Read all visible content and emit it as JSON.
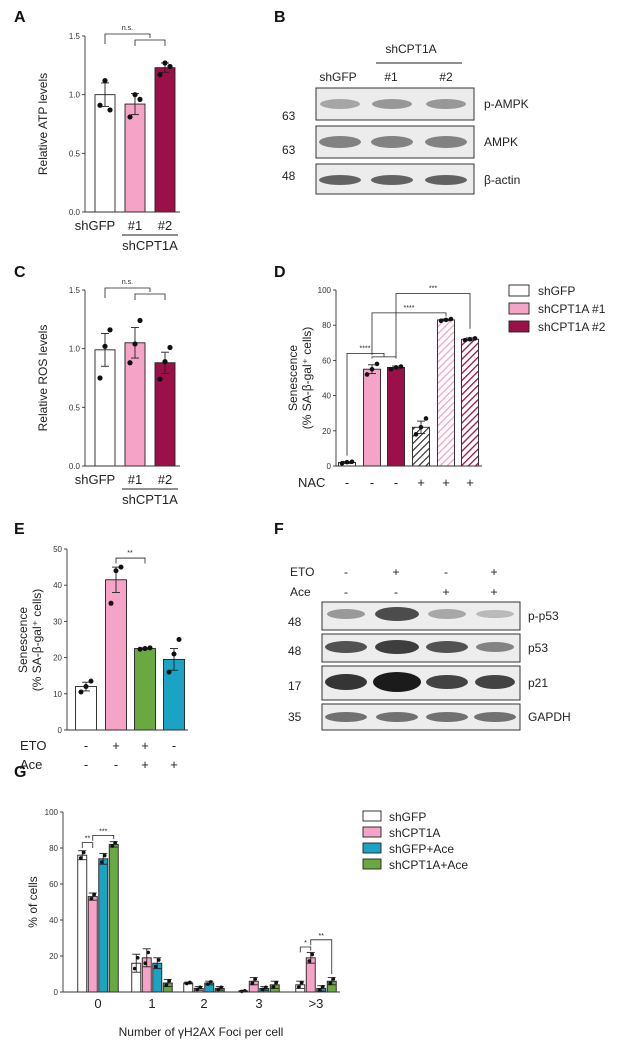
{
  "colors": {
    "white": "#ffffff",
    "pink": "#f5a3c7",
    "maroon": "#9b1048",
    "green": "#6aa842",
    "blue": "#1ba3c3"
  },
  "panels": {
    "A": {
      "letter": "A"
    },
    "B": {
      "letter": "B"
    },
    "C": {
      "letter": "C"
    },
    "D": {
      "letter": "D"
    },
    "E": {
      "letter": "E"
    },
    "F": {
      "letter": "F"
    },
    "G": {
      "letter": "G"
    }
  },
  "chart_data": [
    {
      "id": "A",
      "type": "bar",
      "ylabel": "Relative ATP levels",
      "ylim": [
        0,
        1.5
      ],
      "yticks": [
        "0.0",
        "0.5",
        "1.0",
        "1.5"
      ],
      "categories": [
        "shGFP",
        "#1",
        "#2"
      ],
      "group_label": "shCPT1A",
      "values": [
        1.0,
        0.92,
        1.23
      ],
      "errors": [
        0.1,
        0.09,
        0.04
      ],
      "points": [
        [
          0.91,
          1.12,
          0.87
        ],
        [
          0.81,
          1.0,
          0.96
        ],
        [
          1.17,
          1.27,
          1.24
        ]
      ],
      "colors": [
        "#ffffff",
        "#f5a3c7",
        "#9b1048"
      ],
      "significance": [
        {
          "text": "n.s."
        }
      ]
    },
    {
      "id": "C",
      "type": "bar",
      "ylabel": "Relative ROS levels",
      "ylim": [
        0,
        1.5
      ],
      "yticks": [
        "0.0",
        "0.5",
        "1.0",
        "1.5"
      ],
      "categories": [
        "shGFP",
        "#1",
        "#2"
      ],
      "group_label": "shCPT1A",
      "values": [
        0.99,
        1.05,
        0.88
      ],
      "errors": [
        0.14,
        0.13,
        0.09
      ],
      "points": [
        [
          0.75,
          1.02,
          1.16
        ],
        [
          0.88,
          1.04,
          1.24
        ],
        [
          0.74,
          0.89,
          1.01
        ]
      ],
      "colors": [
        "#ffffff",
        "#f5a3c7",
        "#9b1048"
      ],
      "significance": [
        {
          "text": "n.s."
        }
      ]
    },
    {
      "id": "D",
      "type": "bar",
      "ylabel": "Senescence (% SA-β-gal⁺ cells)",
      "ylim": [
        0,
        100
      ],
      "yticks": [
        "0",
        "20",
        "40",
        "60",
        "80",
        "100"
      ],
      "row_label": "NAC",
      "row_signs": [
        "-",
        "-",
        "-",
        "+",
        "+",
        "+"
      ],
      "values": [
        2,
        55,
        56,
        22,
        83,
        72
      ],
      "errors": [
        0.6,
        2.5,
        0.8,
        3.5,
        0.5,
        0.8
      ],
      "points": [
        [
          1.5,
          2.2,
          2.4
        ],
        [
          52,
          55,
          58
        ],
        [
          55,
          56,
          56.5
        ],
        [
          18,
          22,
          27
        ],
        [
          82.5,
          83,
          83.5
        ],
        [
          71.5,
          72,
          72.5
        ]
      ],
      "colors": [
        "#ffffff",
        "#f5a3c7",
        "#9b1048",
        "#ffffff",
        "#f5a3c7",
        "#9b1048"
      ],
      "hatched": [
        false,
        false,
        false,
        true,
        true,
        true
      ],
      "series": [
        {
          "name": "shGFP"
        },
        {
          "name": "shCPT1A #1"
        },
        {
          "name": "shCPT1A #2"
        }
      ],
      "significance": [
        {
          "text": "****"
        },
        {
          "text": "****"
        },
        {
          "text": "***"
        }
      ]
    },
    {
      "id": "E",
      "type": "bar",
      "ylabel": "Senescence (% SA-β-gal⁺ cells)",
      "ylim": [
        0,
        50
      ],
      "yticks": [
        "0",
        "10",
        "20",
        "30",
        "40",
        "50"
      ],
      "rows": [
        {
          "label": "ETO",
          "signs": [
            "-",
            "+",
            "+",
            "-"
          ]
        },
        {
          "label": "Ace",
          "signs": [
            "-",
            "-",
            "+",
            "+"
          ]
        }
      ],
      "values": [
        12,
        41.5,
        22.5,
        19.5
      ],
      "errors": [
        1.2,
        3.5,
        0.2,
        3.0
      ],
      "points": [
        [
          10.5,
          12,
          13.5
        ],
        [
          35,
          44,
          45
        ],
        [
          22.3,
          22.5,
          22.7
        ],
        [
          16,
          21,
          25
        ]
      ],
      "colors": [
        "#ffffff",
        "#f5a3c7",
        "#6aa842",
        "#1ba3c3"
      ],
      "significance": [
        {
          "text": "**"
        }
      ]
    },
    {
      "id": "G",
      "type": "bar",
      "ylabel": "% of cells",
      "xlabel": "Number of γH2AX  Foci per cell",
      "ylim": [
        0,
        100
      ],
      "yticks": [
        "0",
        "20",
        "40",
        "60",
        "80",
        "100"
      ],
      "categories": [
        "0",
        "1",
        "2",
        "3",
        ">3"
      ],
      "series": [
        {
          "name": "shGFP",
          "values": [
            76,
            16,
            5,
            0.5,
            4
          ],
          "errors": [
            2.5,
            5,
            0.5,
            0.3,
            2
          ]
        },
        {
          "name": "shCPT1A",
          "values": [
            53,
            19,
            2,
            6,
            19
          ],
          "errors": [
            2,
            5,
            1,
            2,
            3
          ]
        },
        {
          "name": "shGFP+Ace",
          "values": [
            74,
            16,
            5,
            2,
            2
          ],
          "errors": [
            3,
            3,
            1,
            1,
            1.5
          ]
        },
        {
          "name": "shCPT1A+Ace",
          "values": [
            82,
            5,
            2,
            4,
            6
          ],
          "errors": [
            1.5,
            2,
            1,
            2,
            2
          ]
        }
      ],
      "colors": [
        "#ffffff",
        "#f5a3c7",
        "#1ba3c3",
        "#6aa842"
      ],
      "significance": [
        {
          "text": "**"
        },
        {
          "text": "***"
        },
        {
          "text": "*"
        },
        {
          "text": "**"
        }
      ]
    }
  ],
  "blot_B": {
    "top_label": "shCPT1A",
    "lanes": [
      "shGFP",
      "#1",
      "#2"
    ],
    "rows": [
      {
        "mw": "63",
        "label": "p-AMPK"
      },
      {
        "mw": "63",
        "label": "AMPK"
      },
      {
        "mw": "48",
        "label": "β-actin"
      }
    ]
  },
  "blot_F": {
    "conditions": [
      {
        "label": "ETO",
        "signs": [
          "-",
          "+",
          "-",
          "+"
        ]
      },
      {
        "label": "Ace",
        "signs": [
          "-",
          "-",
          "+",
          "+"
        ]
      }
    ],
    "rows": [
      {
        "mw": "48",
        "label": "p-p53"
      },
      {
        "mw": "48",
        "label": "p53"
      },
      {
        "mw": "17",
        "label": "p21"
      },
      {
        "mw": "35",
        "label": "GAPDH"
      }
    ]
  }
}
